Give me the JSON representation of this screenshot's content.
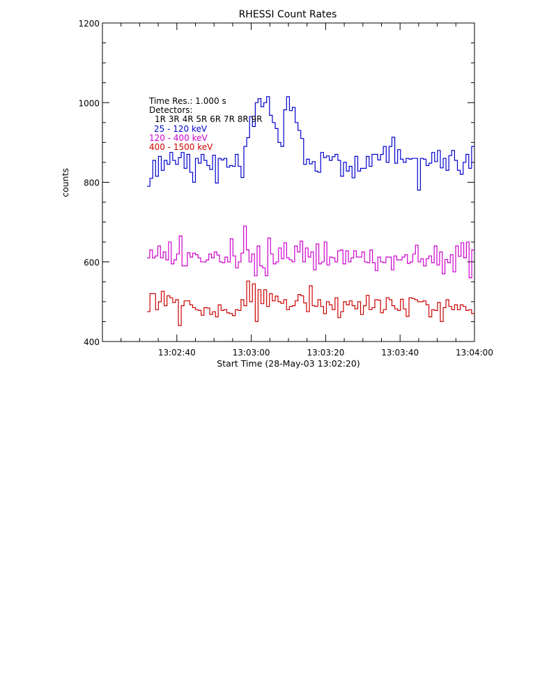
{
  "chart_data": {
    "type": "line",
    "style": "step",
    "title": "RHESSI Count Rates",
    "xlabel": "Start Time (28-May-03 13:02:20)",
    "ylabel": "counts",
    "xlim": [
      0,
      100
    ],
    "ylim": [
      400,
      1200
    ],
    "x_start": 12,
    "x_step": 1,
    "xticks": [
      {
        "value": 20,
        "label": "13:02:40"
      },
      {
        "value": 40,
        "label": "13:03:00"
      },
      {
        "value": 60,
        "label": "13:03:20"
      },
      {
        "value": 80,
        "label": "13:03:40"
      },
      {
        "value": 100,
        "label": "13:04:00"
      }
    ],
    "yticks": [
      {
        "value": 400,
        "label": "400"
      },
      {
        "value": 600,
        "label": "600"
      },
      {
        "value": 800,
        "label": "800"
      },
      {
        "value": 1000,
        "label": "1000"
      },
      {
        "value": 1200,
        "label": "1200"
      }
    ],
    "grid": false,
    "annotations": {
      "time_res": "Time Res.: 1.000 s",
      "detectors_label": "Detectors:",
      "detectors_list": "1R 3R 4R 5R 6R 7R 8R 9R"
    },
    "series": [
      {
        "name": "25 - 120 keV",
        "color": "#0000cc",
        "values": [
          790,
          810,
          855,
          815,
          865,
          830,
          855,
          845,
          875,
          855,
          845,
          862,
          875,
          835,
          870,
          825,
          800,
          860,
          848,
          870,
          855,
          842,
          832,
          868,
          798,
          860,
          856,
          860,
          838,
          842,
          840,
          870,
          840,
          812,
          890,
          912,
          965,
          940,
          1000,
          1010,
          990,
          1000,
          1015,
          968,
          950,
          935,
          900,
          890,
          982,
          1015,
          980,
          988,
          950,
          930,
          910,
          845,
          858,
          846,
          852,
          828,
          825,
          875,
          862,
          866,
          855,
          864,
          870,
          855,
          815,
          850,
          828,
          840,
          811,
          865,
          828,
          835,
          835,
          865,
          840,
          870,
          870,
          856,
          870,
          890,
          850,
          890,
          913,
          848,
          882,
          858,
          850,
          860,
          858,
          860,
          860,
          780,
          860,
          858,
          842,
          848,
          875,
          852,
          880,
          836,
          860,
          830,
          867,
          880,
          855,
          830,
          820,
          850,
          870,
          835,
          890
        ]
      },
      {
        "name": "120 - 400 keV",
        "color": "#cc00cc",
        "values": [
          610,
          630,
          610,
          615,
          640,
          610,
          625,
          605,
          650,
          595,
          605,
          620,
          665,
          590,
          590,
          623,
          612,
          622,
          618,
          610,
          600,
          600,
          605,
          620,
          610,
          625,
          617,
          600,
          598,
          612,
          600,
          658,
          615,
          585,
          600,
          622,
          690,
          630,
          600,
          620,
          565,
          640,
          590,
          585,
          565,
          660,
          620,
          595,
          600,
          635,
          608,
          648,
          610,
          605,
          600,
          640,
          625,
          652,
          600,
          635,
          612,
          625,
          580,
          645,
          595,
          600,
          650,
          592,
          612,
          610,
          600,
          628,
          630,
          595,
          628,
          600,
          610,
          628,
          612,
          612,
          625,
          600,
          598,
          630,
          598,
          578,
          612,
          600,
          598,
          612,
          612,
          580,
          615,
          605,
          605,
          612,
          618,
          596,
          600,
          620,
          642,
          600,
          608,
          590,
          608,
          615,
          598,
          640,
          592,
          625,
          570,
          606,
          598,
          618,
          575,
          640,
          614,
          648,
          610,
          650,
          560,
          630
        ]
      },
      {
        "name": "400 - 1500 keV",
        "color": "#cc0000",
        "values": [
          475,
          520,
          520,
          480,
          500,
          526,
          490,
          515,
          510,
          498,
          505,
          440,
          490,
          502,
          502,
          492,
          485,
          480,
          478,
          466,
          485,
          484,
          468,
          475,
          462,
          492,
          478,
          480,
          472,
          470,
          465,
          480,
          478,
          505,
          490,
          552,
          500,
          545,
          450,
          530,
          495,
          530,
          488,
          520,
          502,
          514,
          500,
          496,
          505,
          480,
          488,
          490,
          502,
          518,
          515,
          497,
          475,
          540,
          490,
          488,
          505,
          488,
          470,
          500,
          492,
          480,
          510,
          460,
          475,
          500,
          492,
          502,
          490,
          482,
          500,
          468,
          490,
          516,
          480,
          485,
          505,
          504,
          472,
          480,
          510,
          505,
          490,
          482,
          478,
          506,
          482,
          463,
          510,
          508,
          505,
          500,
          500,
          502,
          492,
          462,
          480,
          478,
          498,
          450,
          485,
          505,
          488,
          480,
          492,
          480,
          492,
          488,
          478,
          480,
          470
        ]
      }
    ]
  }
}
